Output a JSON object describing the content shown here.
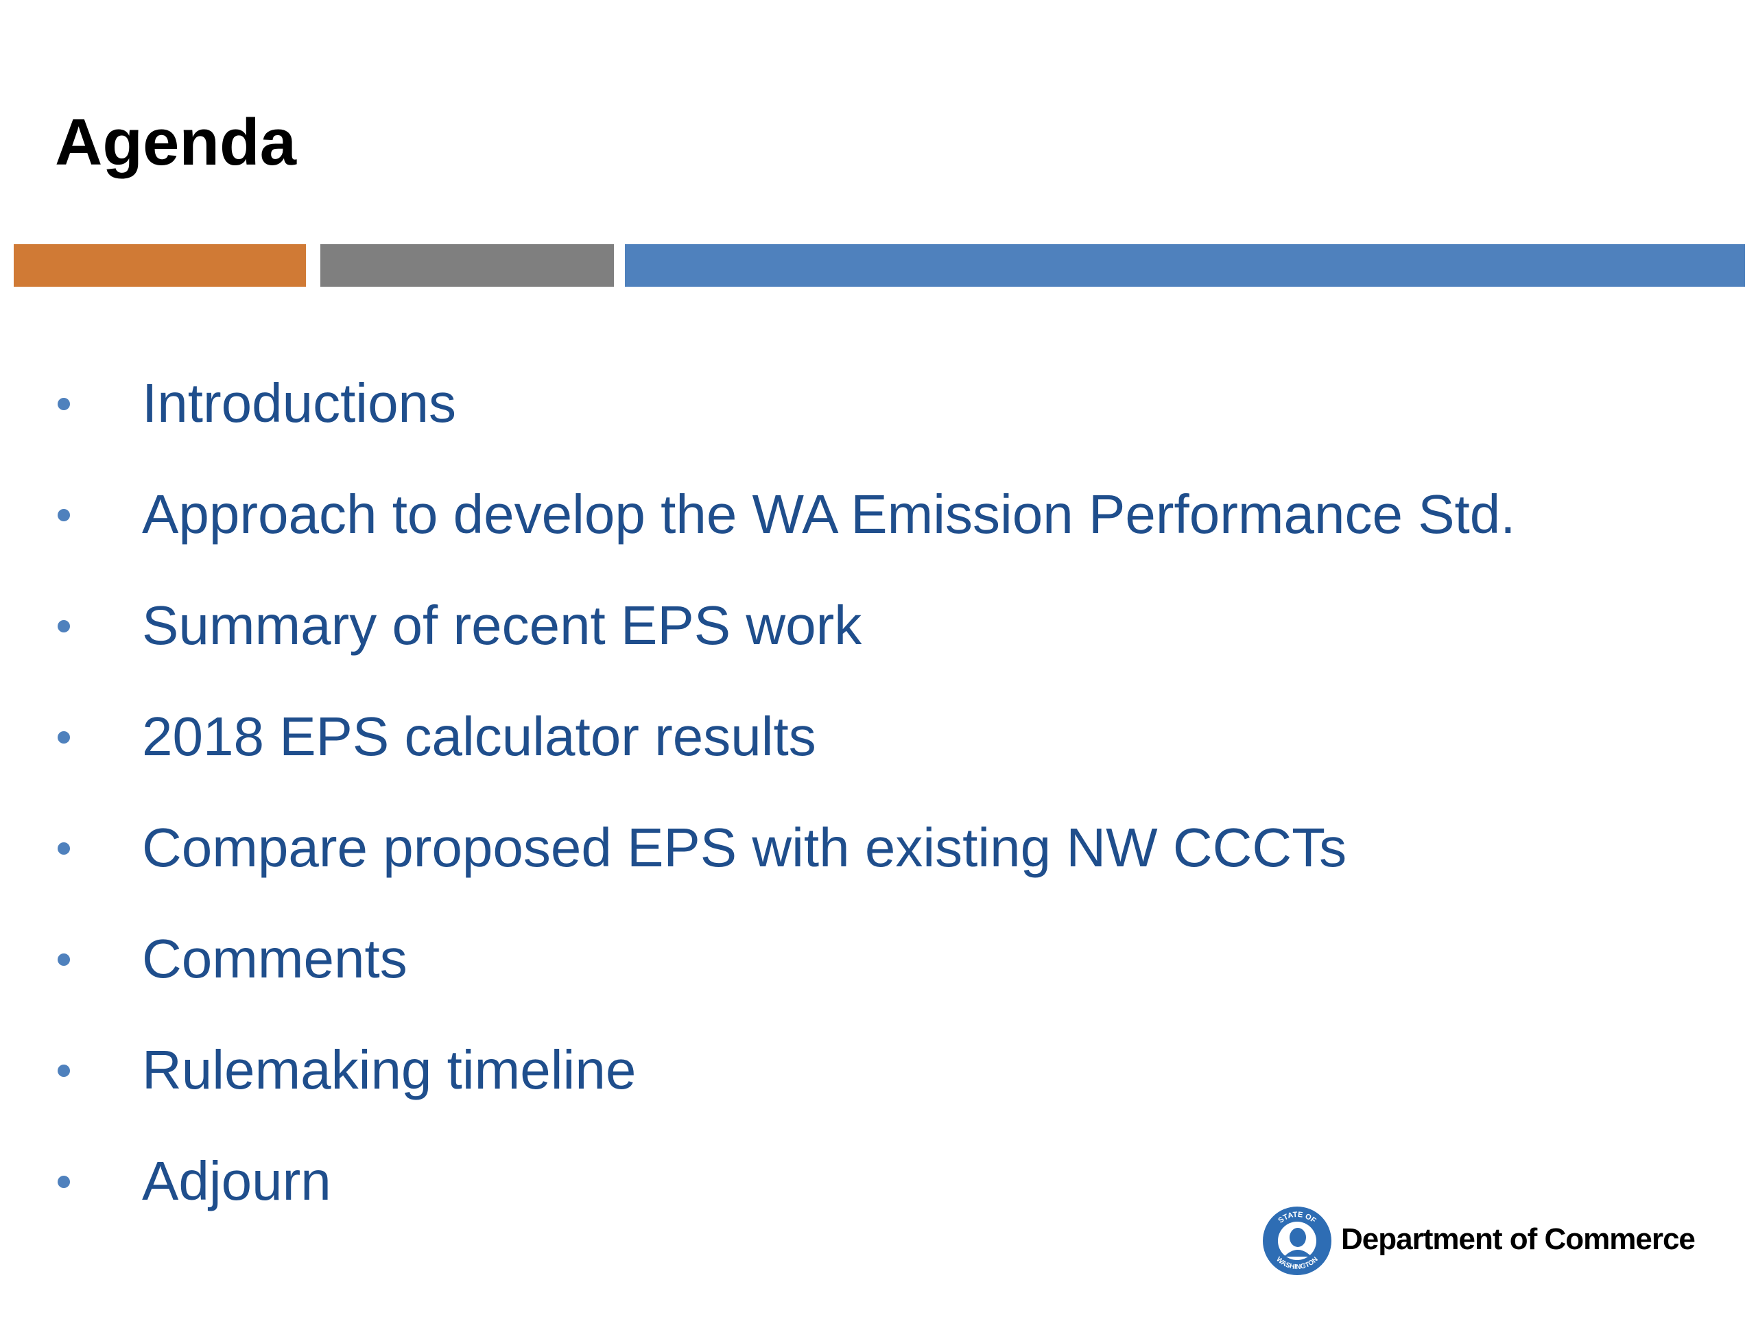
{
  "header": {
    "title": "Agenda"
  },
  "items": [
    "Introductions",
    "Approach to develop the WA Emission Performance Std.",
    "Summary of recent EPS work",
    "2018 EPS calculator results",
    "Compare proposed EPS with existing NW CCCTs",
    "Comments",
    "Rulemaking timeline",
    "Adjourn"
  ],
  "footer": {
    "logo_text_top": "STATE OF",
    "logo_text_bottom": "WASHINGTON",
    "organization": "Department of Commerce"
  }
}
